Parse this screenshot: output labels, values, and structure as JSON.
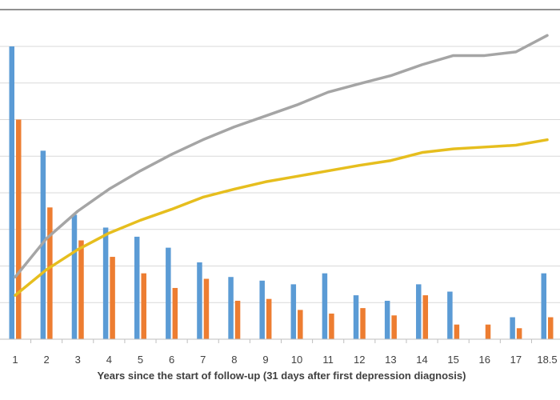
{
  "chart_data": {
    "type": "bar",
    "xlabel": "Years since the start of follow-up (31 days after first depression diagnosis)",
    "ylabel": "",
    "title": "",
    "categories": [
      "1",
      "2",
      "3",
      "4",
      "5",
      "6",
      "7",
      "8",
      "9",
      "10",
      "11",
      "12",
      "13",
      "14",
      "15",
      "16",
      "17",
      "18.5"
    ],
    "ylim": [
      0,
      8
    ],
    "grid": true,
    "series": [
      {
        "type": "bar",
        "color": "#5b9bd5",
        "values": [
          8.0,
          5.15,
          3.4,
          3.05,
          2.8,
          2.5,
          2.1,
          1.7,
          1.6,
          1.5,
          1.8,
          1.2,
          1.05,
          1.5,
          1.3,
          0,
          0.6,
          1.8
        ]
      },
      {
        "type": "bar",
        "color": "#ed7d31",
        "values": [
          6.0,
          3.6,
          2.7,
          2.25,
          1.8,
          1.4,
          1.65,
          1.05,
          1.1,
          0.8,
          0.7,
          0.85,
          0.65,
          1.2,
          0.4,
          0.4,
          0.3,
          0.6
        ]
      },
      {
        "type": "line",
        "color": "#a5a5a5",
        "values": [
          1.7,
          2.75,
          3.5,
          4.1,
          4.6,
          5.05,
          5.45,
          5.8,
          6.1,
          6.4,
          6.75,
          6.98,
          7.2,
          7.5,
          7.75,
          7.75,
          7.85,
          8.3
        ]
      },
      {
        "type": "line",
        "color": "#e6be1e",
        "values": [
          1.2,
          1.9,
          2.45,
          2.9,
          3.25,
          3.55,
          3.88,
          4.1,
          4.3,
          4.45,
          4.6,
          4.75,
          4.88,
          5.1,
          5.2,
          5.25,
          5.3,
          5.45
        ]
      }
    ]
  }
}
